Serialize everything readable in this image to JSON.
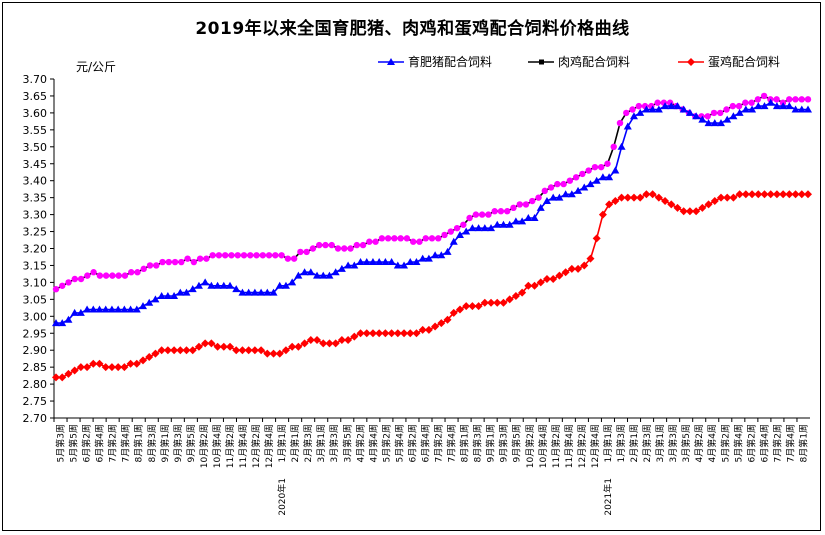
{
  "title": "2019年以来全国育肥猪、肉鸡和蛋鸡配合饲料价格曲线",
  "chart_data": {
    "type": "line",
    "title": "2019年以来全国育肥猪、肉鸡和蛋鸡配合饲料价格曲线",
    "ylabel": "元/公斤",
    "ylim": [
      2.7,
      3.7
    ],
    "ystep": 0.05,
    "y_tick_labels": [
      "2.70",
      "2.75",
      "2.80",
      "2.85",
      "2.90",
      "2.95",
      "3.00",
      "3.05",
      "3.10",
      "3.15",
      "3.20",
      "3.25",
      "3.30",
      "3.35",
      "3.40",
      "3.45",
      "3.50",
      "3.55",
      "3.60",
      "3.65",
      "3.70"
    ],
    "grid": false,
    "legend_position": "top-right",
    "x_labels": [
      "5月第3周",
      "5月第5周",
      "6月第2周",
      "6月第4周",
      "7月第2周",
      "7月第4周",
      "8月第1周",
      "8月第3周",
      "9月第1周",
      "9月第3周",
      "9月第5周",
      "10月第2周",
      "10月第4周",
      "11月第2周",
      "11月第4周",
      "12月第2周",
      "12月第4周",
      "1月第1周",
      "2月第1周",
      "2月第3周",
      "3月第1周",
      "3月第3周",
      "3月第5周",
      "4月第2周",
      "4月第4周",
      "5月第2周",
      "5月第4周",
      "6月第2周",
      "6月第4周",
      "7月第2周",
      "7月第4周",
      "8月第1周",
      "8月第3周",
      "9月第1周",
      "9月第3周",
      "9月第5周",
      "10月第2周",
      "10月第4周",
      "11月第2周",
      "11月第4周",
      "12月第2周",
      "12月第4周",
      "1月第1周",
      "1月第3周",
      "2月第1周",
      "2月第3周",
      "3月第1周",
      "3月第3周",
      "3月第5周",
      "4月第2周",
      "4月第4周",
      "5月第2周",
      "5月第4周",
      "6月第2周",
      "6月第4周",
      "7月第2周",
      "7月第4周",
      "8月第1周"
    ],
    "year_labels": [
      {
        "label": "2020年1",
        "at": 17
      },
      {
        "label": "2021年1",
        "at": 42
      }
    ],
    "series": [
      {
        "name": "育肥猪配合饲料",
        "color": "#0000ff",
        "marker": "triangle",
        "values": [
          2.98,
          2.98,
          2.99,
          3.01,
          3.01,
          3.02,
          3.02,
          3.02,
          3.02,
          3.02,
          3.02,
          3.02,
          3.02,
          3.02,
          3.03,
          3.04,
          3.05,
          3.06,
          3.06,
          3.06,
          3.07,
          3.07,
          3.08,
          3.09,
          3.1,
          3.09,
          3.09,
          3.09,
          3.09,
          3.08,
          3.07,
          3.07,
          3.07,
          3.07,
          3.07,
          3.07,
          3.09,
          3.09,
          3.1,
          3.12,
          3.13,
          3.13,
          3.12,
          3.12,
          3.12,
          3.13,
          3.14,
          3.15,
          3.15,
          3.16,
          3.16,
          3.16,
          3.16,
          3.16,
          3.16,
          3.15,
          3.15,
          3.16,
          3.16,
          3.17,
          3.17,
          3.18,
          3.18,
          3.19,
          3.22,
          3.24,
          3.25,
          3.26,
          3.26,
          3.26,
          3.26,
          3.27,
          3.27,
          3.27,
          3.28,
          3.28,
          3.29,
          3.29,
          3.32,
          3.34,
          3.35,
          3.35,
          3.36,
          3.36,
          3.37,
          3.38,
          3.39,
          3.4,
          3.41,
          3.41,
          3.43,
          3.5,
          3.56,
          3.59,
          3.6,
          3.61,
          3.61,
          3.61,
          3.62,
          3.62,
          3.62,
          3.61,
          3.6,
          3.59,
          3.58,
          3.57,
          3.57,
          3.57,
          3.58,
          3.59,
          3.6,
          3.61,
          3.61,
          3.62,
          3.62,
          3.63,
          3.62,
          3.62,
          3.62,
          3.61,
          3.61,
          3.61
        ]
      },
      {
        "name": "肉鸡配合饲料",
        "color": "#000000",
        "marker": "square",
        "values": [
          3.08,
          3.09,
          3.1,
          3.11,
          3.11,
          3.12,
          3.13,
          3.12,
          3.12,
          3.12,
          3.12,
          3.12,
          3.13,
          3.13,
          3.14,
          3.15,
          3.15,
          3.16,
          3.16,
          3.16,
          3.16,
          3.17,
          3.16,
          3.17,
          3.17,
          3.18,
          3.18,
          3.18,
          3.18,
          3.18,
          3.18,
          3.18,
          3.18,
          3.18,
          3.18,
          3.18,
          3.18,
          3.17,
          3.17,
          3.19,
          3.19,
          3.2,
          3.21,
          3.21,
          3.21,
          3.2,
          3.2,
          3.2,
          3.21,
          3.21,
          3.22,
          3.22,
          3.23,
          3.23,
          3.23,
          3.23,
          3.23,
          3.22,
          3.22,
          3.23,
          3.23,
          3.23,
          3.24,
          3.25,
          3.26,
          3.27,
          3.29,
          3.3,
          3.3,
          3.3,
          3.31,
          3.31,
          3.31,
          3.32,
          3.33,
          3.33,
          3.34,
          3.35,
          3.37,
          3.38,
          3.39,
          3.39,
          3.4,
          3.41,
          3.42,
          3.43,
          3.44,
          3.44,
          3.45,
          3.5,
          3.57,
          3.6,
          3.61,
          3.62,
          3.62,
          3.62,
          3.63,
          3.63,
          3.63,
          3.62,
          3.61,
          3.6,
          3.59,
          3.59,
          3.59,
          3.6,
          3.6,
          3.61,
          3.62,
          3.62,
          3.63,
          3.63,
          3.64,
          3.65,
          3.64,
          3.64,
          3.63,
          3.64,
          3.64,
          3.64,
          3.64
        ]
      },
      {
        "name": "蛋鸡配合饲料",
        "color": "#ff0000",
        "marker": "diamond",
        "values": [
          2.82,
          2.82,
          2.83,
          2.84,
          2.85,
          2.85,
          2.86,
          2.86,
          2.85,
          2.85,
          2.85,
          2.85,
          2.86,
          2.86,
          2.87,
          2.88,
          2.89,
          2.9,
          2.9,
          2.9,
          2.9,
          2.9,
          2.9,
          2.91,
          2.92,
          2.92,
          2.91,
          2.91,
          2.91,
          2.9,
          2.9,
          2.9,
          2.9,
          2.9,
          2.89,
          2.89,
          2.89,
          2.9,
          2.91,
          2.91,
          2.92,
          2.93,
          2.93,
          2.92,
          2.92,
          2.92,
          2.93,
          2.93,
          2.94,
          2.95,
          2.95,
          2.95,
          2.95,
          2.95,
          2.95,
          2.95,
          2.95,
          2.95,
          2.95,
          2.96,
          2.96,
          2.97,
          2.98,
          2.99,
          3.01,
          3.02,
          3.03,
          3.03,
          3.03,
          3.04,
          3.04,
          3.04,
          3.04,
          3.05,
          3.06,
          3.07,
          3.09,
          3.09,
          3.1,
          3.11,
          3.11,
          3.12,
          3.13,
          3.14,
          3.14,
          3.15,
          3.17,
          3.23,
          3.3,
          3.33,
          3.34,
          3.35,
          3.35,
          3.35,
          3.35,
          3.36,
          3.36,
          3.35,
          3.34,
          3.33,
          3.32,
          3.31,
          3.31,
          3.31,
          3.32,
          3.33,
          3.34,
          3.35,
          3.35,
          3.35,
          3.36,
          3.36,
          3.36,
          3.36,
          3.36,
          3.36,
          3.36,
          3.36,
          3.36,
          3.36,
          3.36,
          3.36
        ]
      }
    ]
  }
}
